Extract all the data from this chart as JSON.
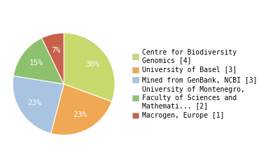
{
  "labels": [
    "Centre for Biodiversity\nGenomics [4]",
    "University of Basel [3]",
    "Mined from GenBank, NCBI [3]",
    "University of Montenegro,\nFaculty of Sciences and\nMathemati... [2]",
    "Macrogen, Europe [1]"
  ],
  "values": [
    30,
    23,
    23,
    15,
    7
  ],
  "colors": [
    "#c8d96e",
    "#f0a854",
    "#a8c4e0",
    "#8dc16e",
    "#c8614a"
  ],
  "autopct_fontsize": 8,
  "legend_fontsize": 7,
  "background_color": "#ffffff",
  "startangle": 90,
  "pct_color": "white"
}
